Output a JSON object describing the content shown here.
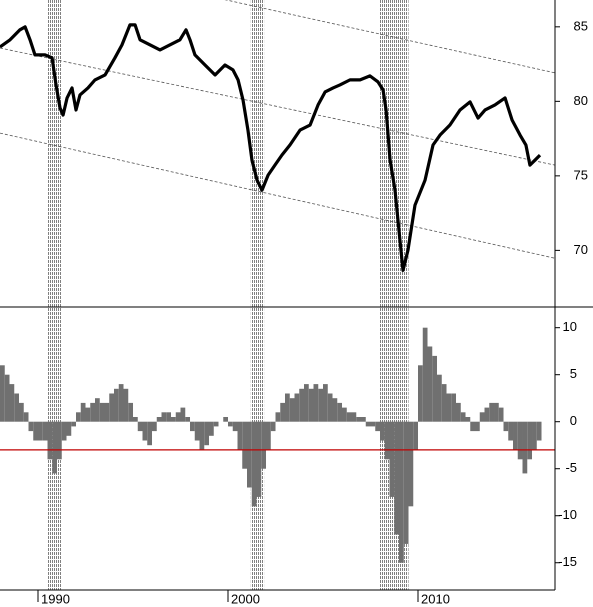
{
  "chart_data": [
    {
      "type": "line",
      "color": "#000000",
      "xlim": [
        1988,
        2017.21
      ],
      "ylim": [
        66.2,
        86.8
      ],
      "yticks": [
        70,
        75,
        80,
        85
      ],
      "x": [
        1988.0,
        1988.53,
        1989.05,
        1989.32,
        1989.58,
        1989.84,
        1990.37,
        1990.74,
        1990.95,
        1991.16,
        1991.32,
        1991.53,
        1991.79,
        1992.0,
        1992.21,
        1992.63,
        1993.0,
        1993.53,
        1994.05,
        1994.42,
        1994.84,
        1995.11,
        1995.37,
        1995.89,
        1996.42,
        1996.95,
        1997.47,
        1997.79,
        1998.0,
        1998.26,
        1998.79,
        1999.32,
        1999.84,
        2000.26,
        2000.53,
        2000.79,
        2001.05,
        2001.26,
        2001.53,
        2001.79,
        2002.11,
        2002.47,
        2002.84,
        2003.26,
        2003.79,
        2004.32,
        2004.74,
        2005.11,
        2005.53,
        2005.89,
        2006.42,
        2006.95,
        2007.47,
        2007.89,
        2008.16,
        2008.32,
        2008.53,
        2008.79,
        2009.05,
        2009.21,
        2009.47,
        2009.84,
        2010.37,
        2010.79,
        2011.16,
        2011.68,
        2012.21,
        2012.74,
        2013.16,
        2013.53,
        2014.05,
        2014.58,
        2014.95,
        2015.37,
        2015.68,
        2015.89,
        2016.16,
        2016.42
      ],
      "values": [
        83.65,
        84.13,
        84.8,
        85,
        84.13,
        83.12,
        83.12,
        82.92,
        81.1,
        79.55,
        79.08,
        80.23,
        80.9,
        79.42,
        80.43,
        80.9,
        81.44,
        81.77,
        82.92,
        83.79,
        85.13,
        85.13,
        84.13,
        83.79,
        83.45,
        83.79,
        84.13,
        84.8,
        84.13,
        83.12,
        82.44,
        81.77,
        82.44,
        82.11,
        81.44,
        80.09,
        78.07,
        76.06,
        74.71,
        74.04,
        75.05,
        75.72,
        76.4,
        77.07,
        78.07,
        78.41,
        79.76,
        80.63,
        80.9,
        81.1,
        81.44,
        81.44,
        81.71,
        81.31,
        80.77,
        79.42,
        76.06,
        74.04,
        70.68,
        68.66,
        70.0,
        73.03,
        74.71,
        77.07,
        77.74,
        78.41,
        79.42,
        79.96,
        78.88,
        79.42,
        79.76,
        80.23,
        78.75,
        77.74,
        77.07,
        75.72,
        76.06,
        76.39
      ],
      "trend_lines": [
        {
          "x": [
            1988,
            2017.21
          ],
          "values": [
            90.17,
            81.91
          ]
        },
        {
          "x": [
            1988,
            2017.21
          ],
          "values": [
            83.58,
            75.72
          ]
        },
        {
          "x": [
            1988,
            2017.21
          ],
          "values": [
            77.87,
            69.47
          ]
        }
      ],
      "shaded_periods": [
        [
          1990.5,
          1991.25
        ],
        [
          2001.2,
          2001.9
        ],
        [
          2007.95,
          2009.5
        ]
      ]
    },
    {
      "type": "bar",
      "color": "#707070",
      "xlim": [
        1988,
        2017.21
      ],
      "ylim": [
        -17.9,
        12.2
      ],
      "yticks": [
        -15,
        -10,
        -5,
        0,
        5,
        10
      ],
      "xticks": [
        1990,
        2000,
        2010
      ],
      "reference_line": -3,
      "reference_color": "#c00000",
      "x": [
        1988,
        1988.25,
        1988.5,
        1988.75,
        1989,
        1989.25,
        1989.5,
        1989.75,
        1990,
        1990.25,
        1990.5,
        1990.75,
        1991,
        1991.25,
        1991.5,
        1991.75,
        1992,
        1992.25,
        1992.5,
        1992.75,
        1993,
        1993.25,
        1993.5,
        1993.75,
        1994,
        1994.25,
        1994.5,
        1994.75,
        1995,
        1995.25,
        1995.5,
        1995.75,
        1996,
        1996.25,
        1996.5,
        1996.75,
        1997,
        1997.25,
        1997.5,
        1997.75,
        1998,
        1998.25,
        1998.5,
        1998.75,
        1999,
        1999.25,
        1999.5,
        1999.75,
        2000,
        2000.25,
        2000.5,
        2000.75,
        2001,
        2001.25,
        2001.5,
        2001.75,
        2002,
        2002.25,
        2002.5,
        2002.75,
        2003,
        2003.25,
        2003.5,
        2003.75,
        2004,
        2004.25,
        2004.5,
        2004.75,
        2005,
        2005.25,
        2005.5,
        2005.75,
        2006,
        2006.25,
        2006.5,
        2006.75,
        2007,
        2007.25,
        2007.5,
        2007.75,
        2008,
        2008.25,
        2008.5,
        2008.75,
        2009,
        2009.25,
        2009.5,
        2009.75,
        2010,
        2010.25,
        2010.5,
        2010.75,
        2011,
        2011.25,
        2011.5,
        2011.75,
        2012,
        2012.25,
        2012.5,
        2012.75,
        2013,
        2013.25,
        2013.5,
        2013.75,
        2014,
        2014.25,
        2014.5,
        2014.75,
        2015,
        2015.25,
        2015.5,
        2015.75,
        2016,
        2016.25
      ],
      "values": [
        6,
        5,
        4,
        3,
        2,
        1,
        -1,
        -2,
        -2,
        -2,
        -4,
        -5.5,
        -4,
        -2,
        -1.5,
        -0.5,
        1,
        2,
        1.5,
        2,
        2.5,
        2,
        2,
        3,
        3.5,
        4,
        3.5,
        2,
        0.5,
        -1,
        -2,
        -2.5,
        -1,
        0.5,
        1,
        1,
        0.5,
        1,
        1.5,
        0.5,
        -1,
        -2,
        -3,
        -2.5,
        -1.5,
        -0.5,
        0,
        0.5,
        -0.5,
        -1,
        -3,
        -5,
        -7,
        -9,
        -8,
        -5,
        -3,
        -1,
        1,
        2,
        3,
        2.5,
        3,
        3.5,
        4,
        3.5,
        4,
        3.5,
        4,
        3,
        2.5,
        2,
        1.5,
        1,
        1,
        0.5,
        0.5,
        -0.5,
        -0.5,
        -1,
        -2,
        -4,
        -8,
        -12,
        -15,
        -13,
        -9,
        -3,
        6,
        10,
        8,
        7,
        5,
        4,
        3,
        3,
        2,
        1,
        0.5,
        -1,
        -1,
        1,
        1.5,
        2,
        2,
        1.5,
        -1,
        -2,
        -3,
        -4,
        -5.5,
        -4,
        -3,
        -2
      ]
    }
  ]
}
